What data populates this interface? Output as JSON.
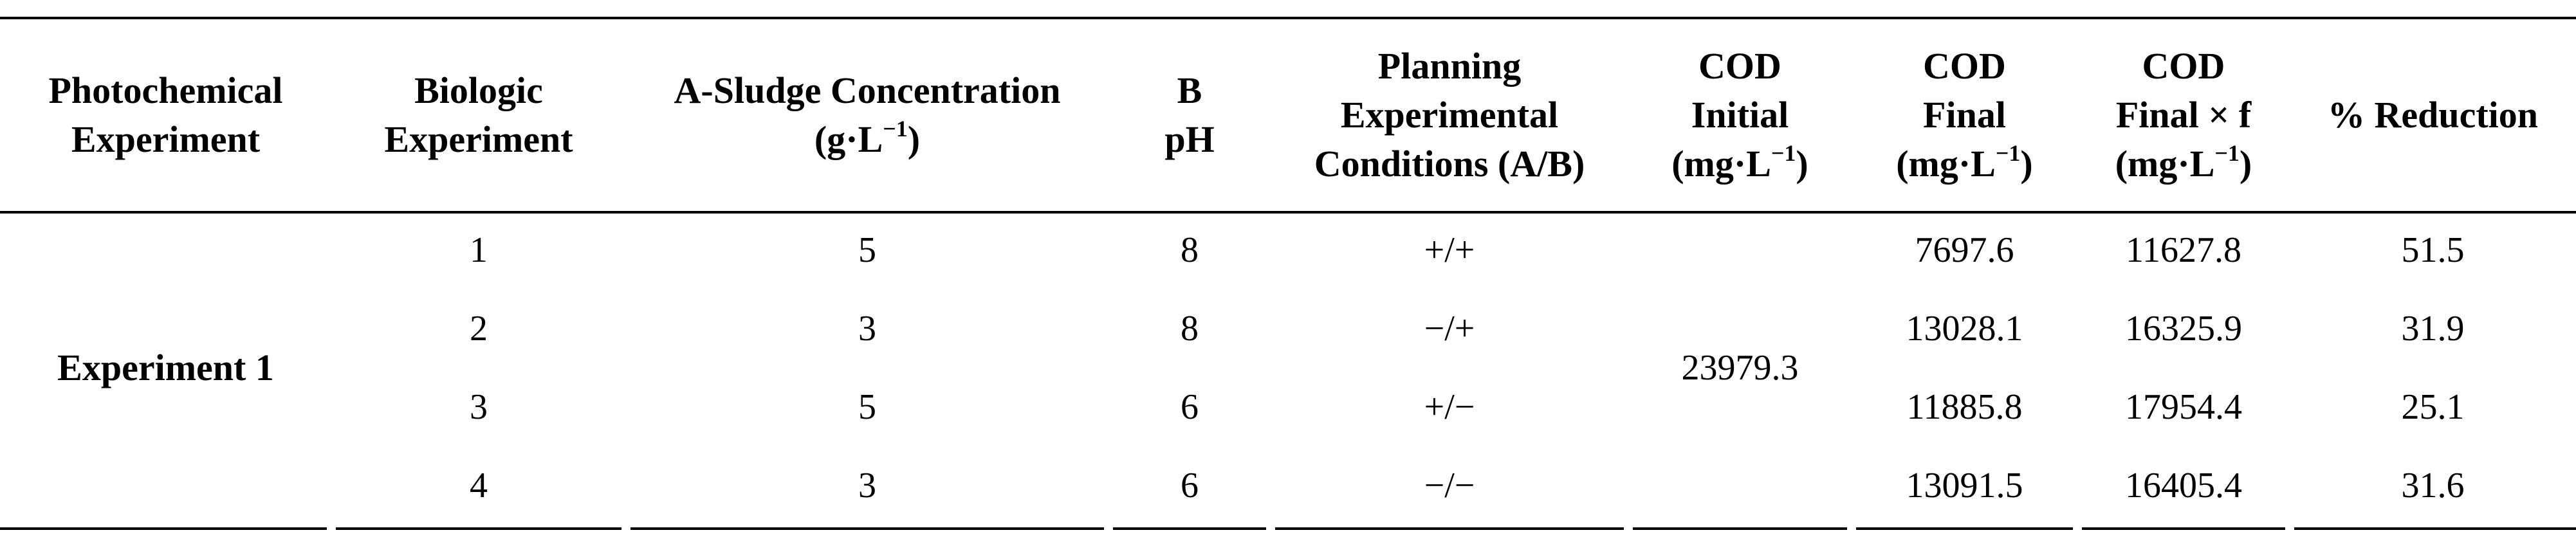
{
  "headers": {
    "photochemical": [
      "Photochemical",
      "Experiment"
    ],
    "biologic": [
      "Biologic",
      "Experiment"
    ],
    "sludge": {
      "line1": "A-Sludge Concentration",
      "unit_pre": "(g·L",
      "unit_sup": "−1",
      "unit_post": ")"
    },
    "ph": [
      "B",
      "pH"
    ],
    "planning": [
      "Planning",
      "Experimental",
      "Conditions (A/B)"
    ],
    "cod_initial": {
      "line1": "COD",
      "line2": "Initial",
      "unit_pre": "(mg·L",
      "unit_sup": "−1",
      "unit_post": ")"
    },
    "cod_final": {
      "line1": "COD",
      "line2": "Final",
      "unit_pre": "(mg·L",
      "unit_sup": "−1",
      "unit_post": ")"
    },
    "cod_final_f": {
      "line1": "COD",
      "line2": "Final × f",
      "unit_pre": "(mg·L",
      "unit_sup": "−1",
      "unit_post": ")"
    },
    "reduction": "% Reduction"
  },
  "experiment_name": "Experiment 1",
  "cod_initial_value": "23979.3",
  "rows": [
    {
      "biologic": "1",
      "sludge": "5",
      "ph": "8",
      "planning": "+/+",
      "cod_final": "7697.6",
      "cod_final_f": "11627.8",
      "reduction": "51.5"
    },
    {
      "biologic": "2",
      "sludge": "3",
      "ph": "8",
      "planning": "−/+",
      "cod_final": "13028.1",
      "cod_final_f": "16325.9",
      "reduction": "31.9"
    },
    {
      "biologic": "3",
      "sludge": "5",
      "ph": "6",
      "planning": "+/−",
      "cod_final": "11885.8",
      "cod_final_f": "17954.4",
      "reduction": "25.1"
    },
    {
      "biologic": "4",
      "sludge": "3",
      "ph": "6",
      "planning": "−/−",
      "cod_final": "13091.5",
      "cod_final_f": "16405.4",
      "reduction": "31.6"
    }
  ]
}
